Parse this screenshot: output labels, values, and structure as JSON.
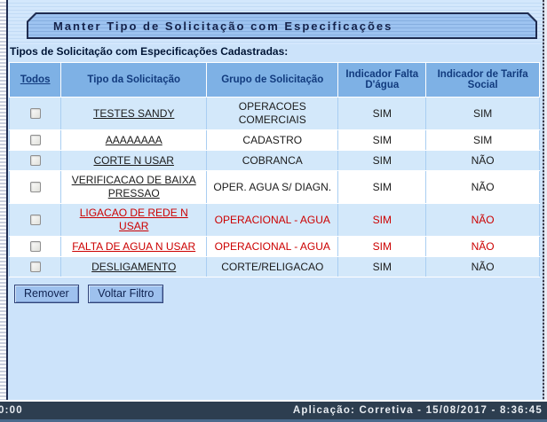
{
  "header": {
    "title": "Manter Tipo de Solicitação com Especificações"
  },
  "section": {
    "label": "Tipos de Solicitação com Especificações Cadastradas:"
  },
  "table": {
    "headers": [
      "Todos",
      "Tipo da Solicitação",
      "Grupo de Solicitação",
      "Indicador Falta D'água",
      "Indicador de Tarifa Social"
    ],
    "rows": [
      {
        "tipo": "TESTES SANDY",
        "grupo": "OPERACOES COMERCIAIS",
        "falta": "SIM",
        "tarifa": "SIM",
        "highlight": false
      },
      {
        "tipo": "AAAAAAAA",
        "grupo": "CADASTRO",
        "falta": "SIM",
        "tarifa": "SIM",
        "highlight": false
      },
      {
        "tipo": "CORTE N USAR",
        "grupo": "COBRANCA",
        "falta": "SIM",
        "tarifa": "NÃO",
        "highlight": false
      },
      {
        "tipo": "VERIFICACAO DE BAIXA PRESSAO",
        "grupo": "OPER. AGUA S/ DIAGN.",
        "falta": "SIM",
        "tarifa": "NÃO",
        "highlight": false
      },
      {
        "tipo": "LIGACAO DE REDE N USAR",
        "grupo": "OPERACIONAL - AGUA",
        "falta": "SIM",
        "tarifa": "NÃO",
        "highlight": true
      },
      {
        "tipo": "FALTA DE AGUA N USAR",
        "grupo": "OPERACIONAL - AGUA",
        "falta": "SIM",
        "tarifa": "NÃO",
        "highlight": true
      },
      {
        "tipo": "DESLIGAMENTO",
        "grupo": "CORTE/RELIGACAO",
        "falta": "SIM",
        "tarifa": "NÃO",
        "highlight": false
      }
    ]
  },
  "buttons": {
    "remove": "Remover",
    "back": "Voltar Filtro"
  },
  "statusbar": {
    "left": "0:00",
    "right": "Aplicação: Corretiva - 15/08/2017 - 8:36:45"
  },
  "colors": {
    "accent_navy": "#1F2C50",
    "header_blue": "#7EB1E5",
    "row_blue": "#D3E8FA",
    "highlight_red": "#CC0000",
    "statusbar_bg": "#2D3E50",
    "page_bg": "#CCE3FA"
  }
}
